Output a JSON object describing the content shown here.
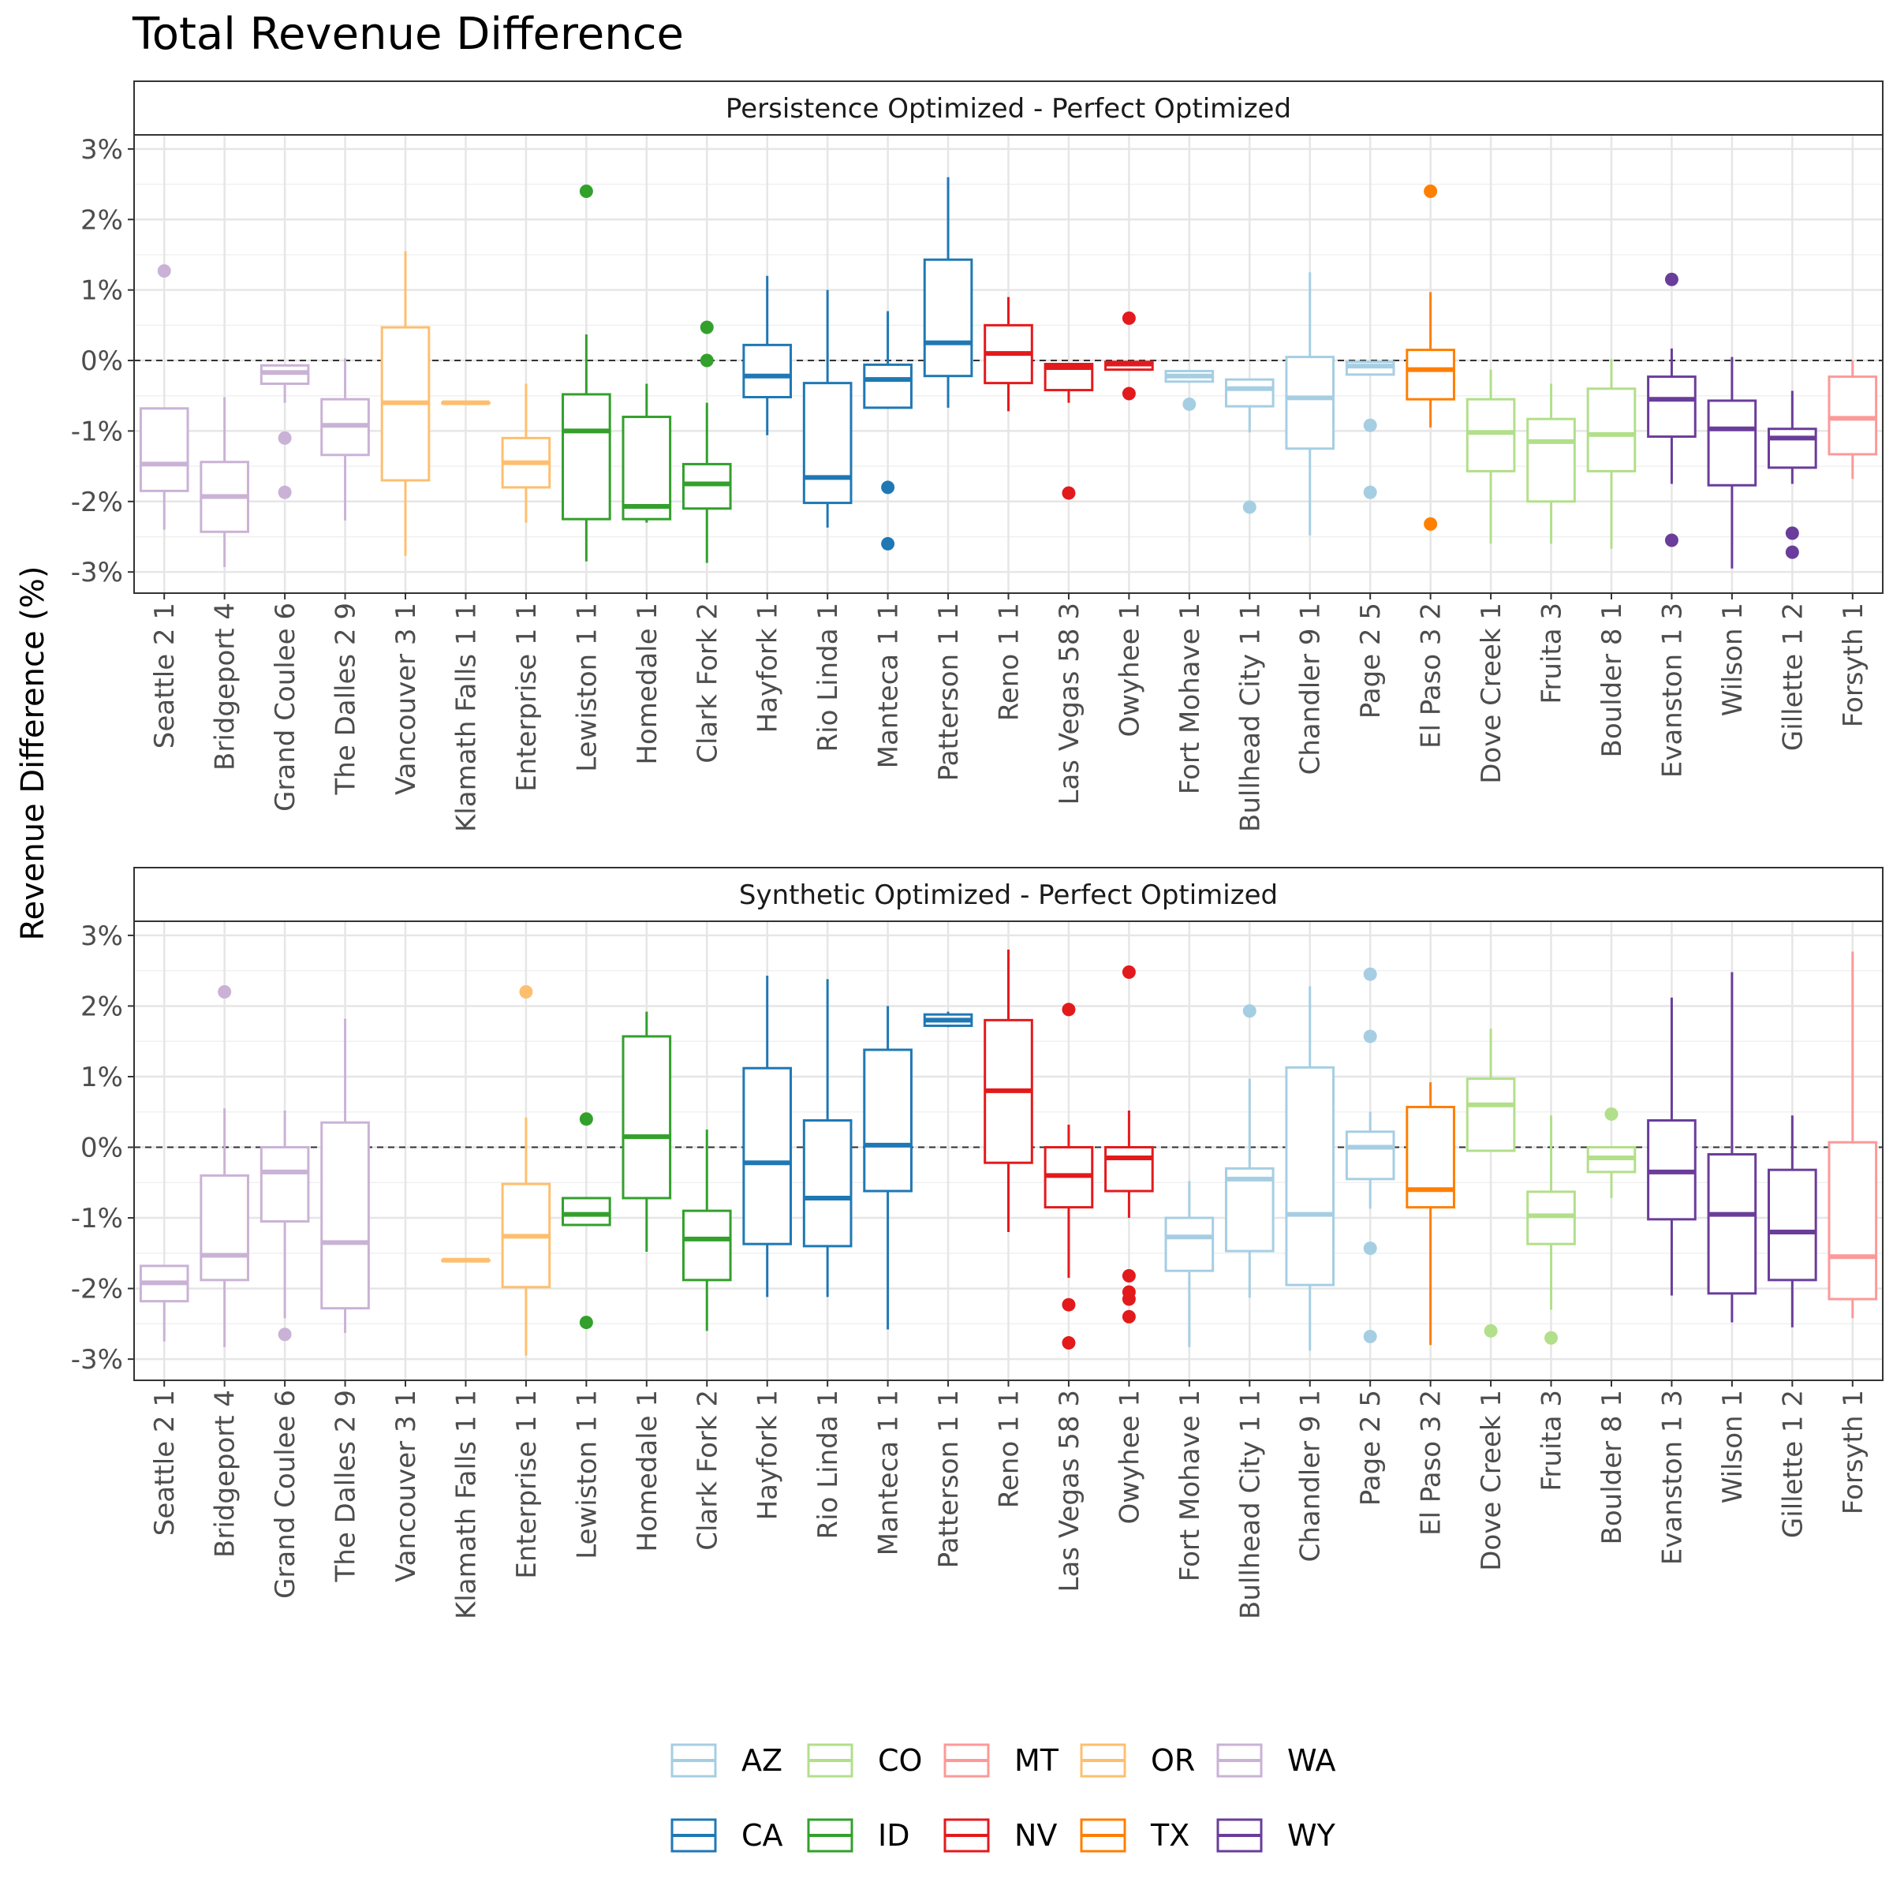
{
  "chart_data": {
    "type": "boxplot",
    "title": "Total Revenue Difference",
    "ylabel": "Revenue Difference (%)",
    "xlabel": "",
    "ylim": [
      -3.3,
      3.2
    ],
    "yticks": [
      "-3%",
      "-2%",
      "-1%",
      "0%",
      "1%",
      "2%",
      "3%"
    ],
    "ytick_values": [
      -3,
      -2,
      -1,
      0,
      1,
      2,
      3
    ],
    "reference_line": 0,
    "grid": true,
    "legend_position": "bottom",
    "categories": [
      "Seattle 2 1",
      "Bridgeport 4",
      "Grand Coulee 6",
      "The Dalles 2 9",
      "Vancouver 3 1",
      "Klamath Falls 1 1",
      "Enterprise 1 1",
      "Lewiston 1 1",
      "Homedale 1",
      "Clark Fork 2",
      "Hayfork 1",
      "Rio Linda 1",
      "Manteca 1 1",
      "Patterson 1 1",
      "Reno 1 1",
      "Las Vegas 58 3",
      "Owyhee 1",
      "Fort Mohave 1",
      "Bullhead City 1 1",
      "Chandler 9 1",
      "Page 2 5",
      "El Paso 3 2",
      "Dove Creek 1",
      "Fruita 3",
      "Boulder 8 1",
      "Evanston 1 3",
      "Wilson 1",
      "Gillette 1 2",
      "Forsyth 1"
    ],
    "group": [
      "WA",
      "WA",
      "WA",
      "WA",
      "OR",
      "OR",
      "OR",
      "ID",
      "ID",
      "ID",
      "CA",
      "CA",
      "CA",
      "CA",
      "NV",
      "NV",
      "NV",
      "AZ",
      "AZ",
      "AZ",
      "AZ",
      "TX",
      "CO",
      "CO",
      "CO",
      "WY",
      "WY",
      "WY",
      "MT"
    ],
    "legend": [
      {
        "label": "AZ",
        "color": "#a6cee3"
      },
      {
        "label": "CO",
        "color": "#b2df8a"
      },
      {
        "label": "MT",
        "color": "#fb9a99"
      },
      {
        "label": "OR",
        "color": "#fdbf6f"
      },
      {
        "label": "WA",
        "color": "#cab2d6"
      },
      {
        "label": "CA",
        "color": "#1f78b4"
      },
      {
        "label": "ID",
        "color": "#33a02c"
      },
      {
        "label": "NV",
        "color": "#e31a1c"
      },
      {
        "label": "TX",
        "color": "#ff7f00"
      },
      {
        "label": "WY",
        "color": "#6a3d9a"
      }
    ],
    "panels": [
      {
        "title": "Persistence Optimized - Perfect Optimized",
        "boxes": [
          {
            "lo": -2.4,
            "q1": -1.85,
            "med": -1.47,
            "q3": -0.68,
            "hi": -0.68,
            "out": [
              1.27
            ]
          },
          {
            "lo": -2.93,
            "q1": -2.43,
            "med": -1.93,
            "q3": -1.44,
            "hi": -0.52,
            "out": []
          },
          {
            "lo": -0.6,
            "q1": -0.33,
            "med": -0.17,
            "q3": -0.07,
            "hi": -0.07,
            "out": [
              -1.1,
              -1.87
            ]
          },
          {
            "lo": -2.27,
            "q1": -1.34,
            "med": -0.92,
            "q3": -0.55,
            "hi": 0.03,
            "out": []
          },
          {
            "lo": -2.77,
            "q1": -1.7,
            "med": -0.6,
            "q3": 0.47,
            "hi": 1.55,
            "out": []
          },
          {
            "lo": -0.6,
            "q1": -0.6,
            "med": -0.6,
            "q3": -0.6,
            "hi": -0.6,
            "out": []
          },
          {
            "lo": -2.3,
            "q1": -1.8,
            "med": -1.45,
            "q3": -1.1,
            "hi": -0.33,
            "out": []
          },
          {
            "lo": -2.85,
            "q1": -2.25,
            "med": -1.0,
            "q3": -0.48,
            "hi": 0.37,
            "out": [
              2.4
            ]
          },
          {
            "lo": -2.3,
            "q1": -2.25,
            "med": -2.07,
            "q3": -0.8,
            "hi": -0.33,
            "out": []
          },
          {
            "lo": -2.87,
            "q1": -2.1,
            "med": -1.75,
            "q3": -1.47,
            "hi": -0.6,
            "out": [
              0.47,
              0.0
            ]
          },
          {
            "lo": -1.06,
            "q1": -0.52,
            "med": -0.22,
            "q3": 0.22,
            "hi": 1.2,
            "out": []
          },
          {
            "lo": -2.37,
            "q1": -2.02,
            "med": -1.66,
            "q3": -0.32,
            "hi": 1.0,
            "out": []
          },
          {
            "lo": -0.67,
            "q1": -0.67,
            "med": -0.27,
            "q3": -0.06,
            "hi": 0.7,
            "out": [
              -1.8,
              -2.6
            ]
          },
          {
            "lo": -0.67,
            "q1": -0.22,
            "med": 0.25,
            "q3": 1.43,
            "hi": 2.6,
            "out": []
          },
          {
            "lo": -0.72,
            "q1": -0.32,
            "med": 0.1,
            "q3": 0.5,
            "hi": 0.9,
            "out": []
          },
          {
            "lo": -0.6,
            "q1": -0.42,
            "med": -0.1,
            "q3": -0.05,
            "hi": -0.05,
            "out": [
              -1.88
            ]
          },
          {
            "lo": -0.13,
            "q1": -0.13,
            "med": -0.05,
            "q3": -0.02,
            "hi": -0.02,
            "out": [
              0.6,
              -0.47
            ]
          },
          {
            "lo": -0.3,
            "q1": -0.3,
            "med": -0.22,
            "q3": -0.15,
            "hi": -0.15,
            "out": [
              -0.62
            ]
          },
          {
            "lo": -1.02,
            "q1": -0.65,
            "med": -0.4,
            "q3": -0.27,
            "hi": -0.27,
            "out": [
              -2.08
            ]
          },
          {
            "lo": -2.48,
            "q1": -1.25,
            "med": -0.53,
            "q3": 0.05,
            "hi": 1.25,
            "out": []
          },
          {
            "lo": -0.2,
            "q1": -0.2,
            "med": -0.08,
            "q3": -0.02,
            "hi": -0.02,
            "out": [
              -0.92,
              -1.87
            ]
          },
          {
            "lo": -0.95,
            "q1": -0.55,
            "med": -0.13,
            "q3": 0.15,
            "hi": 0.97,
            "out": [
              2.4,
              -2.32
            ]
          },
          {
            "lo": -2.6,
            "q1": -1.57,
            "med": -1.02,
            "q3": -0.55,
            "hi": -0.13,
            "out": []
          },
          {
            "lo": -2.6,
            "q1": -2.0,
            "med": -1.15,
            "q3": -0.83,
            "hi": -0.33,
            "out": []
          },
          {
            "lo": -2.67,
            "q1": -1.57,
            "med": -1.05,
            "q3": -0.4,
            "hi": 0.02,
            "out": []
          },
          {
            "lo": -1.75,
            "q1": -1.08,
            "med": -0.55,
            "q3": -0.23,
            "hi": 0.17,
            "out": [
              1.15,
              -2.55
            ]
          },
          {
            "lo": -2.95,
            "q1": -1.77,
            "med": -0.97,
            "q3": -0.57,
            "hi": 0.05,
            "out": []
          },
          {
            "lo": -1.75,
            "q1": -1.52,
            "med": -1.1,
            "q3": -0.97,
            "hi": -0.43,
            "out": [
              -2.45,
              -2.72
            ]
          },
          {
            "lo": -1.68,
            "q1": -1.33,
            "med": -0.82,
            "q3": -0.23,
            "hi": 0.0,
            "out": []
          }
        ]
      },
      {
        "title": "Synthetic Optimized - Perfect Optimized",
        "boxes": [
          {
            "lo": -2.75,
            "q1": -2.18,
            "med": -1.92,
            "q3": -1.68,
            "hi": -1.68,
            "out": []
          },
          {
            "lo": -2.83,
            "q1": -1.88,
            "med": -1.53,
            "q3": -0.4,
            "hi": 0.55,
            "out": [
              2.2
            ]
          },
          {
            "lo": -2.42,
            "q1": -1.05,
            "med": -0.35,
            "q3": 0.0,
            "hi": 0.52,
            "out": [
              -2.65
            ]
          },
          {
            "lo": -2.63,
            "q1": -2.28,
            "med": -1.35,
            "q3": 0.35,
            "hi": 1.82,
            "out": []
          },
          null,
          {
            "lo": -1.6,
            "q1": -1.6,
            "med": -1.6,
            "q3": -1.6,
            "hi": -1.6,
            "out": []
          },
          {
            "lo": -2.95,
            "q1": -1.98,
            "med": -1.26,
            "q3": -0.52,
            "hi": 0.42,
            "out": [
              2.2
            ]
          },
          {
            "lo": -1.1,
            "q1": -1.1,
            "med": -0.95,
            "q3": -0.72,
            "hi": -0.72,
            "out": [
              0.4,
              -2.48
            ]
          },
          {
            "lo": -1.48,
            "q1": -0.72,
            "med": 0.15,
            "q3": 1.57,
            "hi": 1.92,
            "out": []
          },
          {
            "lo": -2.6,
            "q1": -1.88,
            "med": -1.3,
            "q3": -0.9,
            "hi": 0.25,
            "out": []
          },
          {
            "lo": -2.12,
            "q1": -1.37,
            "med": -0.22,
            "q3": 1.12,
            "hi": 2.43,
            "out": []
          },
          {
            "lo": -2.12,
            "q1": -1.4,
            "med": -0.72,
            "q3": 0.38,
            "hi": 2.38,
            "out": []
          },
          {
            "lo": -2.58,
            "q1": -0.62,
            "med": 0.03,
            "q3": 1.38,
            "hi": 2.0,
            "out": []
          },
          {
            "lo": 1.7,
            "q1": 1.72,
            "med": 1.8,
            "q3": 1.88,
            "hi": 1.92,
            "out": []
          },
          {
            "lo": -1.2,
            "q1": -0.22,
            "med": 0.8,
            "q3": 1.8,
            "hi": 2.8,
            "out": []
          },
          {
            "lo": -1.85,
            "q1": -0.85,
            "med": -0.4,
            "q3": 0.0,
            "hi": 0.32,
            "out": [
              1.95,
              -2.23,
              -2.77
            ]
          },
          {
            "lo": -1.0,
            "q1": -0.62,
            "med": -0.15,
            "q3": 0.0,
            "hi": 0.52,
            "out": [
              2.48,
              -1.82,
              -2.05,
              -2.15,
              -2.4
            ]
          },
          {
            "lo": -2.83,
            "q1": -1.75,
            "med": -1.27,
            "q3": -1.0,
            "hi": -0.48,
            "out": []
          },
          {
            "lo": -2.13,
            "q1": -1.47,
            "med": -0.45,
            "q3": -0.3,
            "hi": 0.97,
            "out": [
              1.93
            ]
          },
          {
            "lo": -2.88,
            "q1": -1.95,
            "med": -0.95,
            "q3": 1.13,
            "hi": 2.28,
            "out": []
          },
          {
            "lo": -0.87,
            "q1": -0.45,
            "med": 0.0,
            "q3": 0.22,
            "hi": 0.5,
            "out": [
              2.45,
              1.57,
              -1.43,
              -2.68
            ]
          },
          {
            "lo": -2.8,
            "q1": -0.85,
            "med": -0.6,
            "q3": 0.57,
            "hi": 0.92,
            "out": []
          },
          {
            "lo": -0.05,
            "q1": -0.05,
            "med": 0.6,
            "q3": 0.97,
            "hi": 1.68,
            "out": [
              -2.6
            ]
          },
          {
            "lo": -2.3,
            "q1": -1.37,
            "med": -0.97,
            "q3": -0.63,
            "hi": 0.45,
            "out": [
              -2.7
            ]
          },
          {
            "lo": -0.72,
            "q1": -0.35,
            "med": -0.15,
            "q3": 0.0,
            "hi": 0.0,
            "out": [
              0.47
            ]
          },
          {
            "lo": -2.1,
            "q1": -1.02,
            "med": -0.35,
            "q3": 0.38,
            "hi": 2.12,
            "out": []
          },
          {
            "lo": -2.48,
            "q1": -2.07,
            "med": -0.95,
            "q3": -0.1,
            "hi": 2.48,
            "out": []
          },
          {
            "lo": -2.55,
            "q1": -1.88,
            "med": -1.2,
            "q3": -0.32,
            "hi": 0.45,
            "out": []
          },
          {
            "lo": -2.42,
            "q1": -2.15,
            "med": -1.55,
            "q3": 0.07,
            "hi": 2.77,
            "out": []
          }
        ]
      }
    ]
  }
}
